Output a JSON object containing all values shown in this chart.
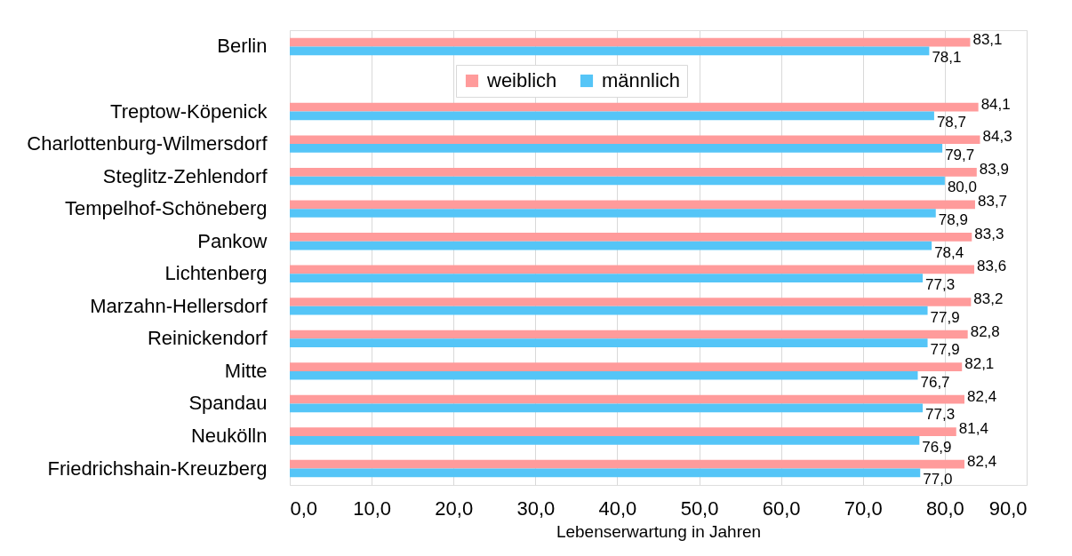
{
  "chart_data": {
    "type": "bar",
    "orientation": "horizontal",
    "xlabel": "Lebenserwartung in Jahren",
    "categories": [
      "Berlin",
      null,
      "Treptow-Köpenick",
      "Charlottenburg-Wilmersdorf",
      "Steglitz-Zehlendorf",
      "Tempelhof-Schöneberg",
      "Pankow",
      "Lichtenberg",
      "Marzahn-Hellersdorf",
      "Reinickendorf",
      "Mitte",
      "Spandau",
      "Neukölln",
      "Friedrichshain-Kreuzberg"
    ],
    "series": [
      {
        "name": "weiblich",
        "color": "#ff9b9b",
        "values": [
          83.1,
          null,
          84.1,
          84.3,
          83.9,
          83.7,
          83.3,
          83.6,
          83.2,
          82.8,
          82.1,
          82.4,
          81.4,
          82.4
        ],
        "value_labels": [
          "83,1",
          null,
          "84,1",
          "84,3",
          "83,9",
          "83,7",
          "83,3",
          "83,6",
          "83,2",
          "82,8",
          "82,1",
          "82,4",
          "81,4",
          "82,4"
        ]
      },
      {
        "name": "männlich",
        "color": "#55c5f7",
        "values": [
          78.1,
          null,
          78.7,
          79.7,
          80.0,
          78.9,
          78.4,
          77.3,
          77.9,
          77.9,
          76.7,
          77.3,
          76.9,
          77.0
        ],
        "value_labels": [
          "78,1",
          null,
          "78,7",
          "79,7",
          "80,0",
          "78,9",
          "78,4",
          "77,3",
          "77,9",
          "77,9",
          "76,7",
          "77,3",
          "76,9",
          "77,0"
        ]
      }
    ],
    "xlim": [
      0,
      90
    ],
    "xticks": [
      {
        "value": 0,
        "label": "0,0"
      },
      {
        "value": 10,
        "label": "10,0"
      },
      {
        "value": 20,
        "label": "20,0"
      },
      {
        "value": 30,
        "label": "30,0"
      },
      {
        "value": 40,
        "label": "40,0"
      },
      {
        "value": 50,
        "label": "50,0"
      },
      {
        "value": 60,
        "label": "60,0"
      },
      {
        "value": 70,
        "label": "70,0"
      },
      {
        "value": 80,
        "label": "80,0"
      },
      {
        "value": 90,
        "label": "90,0"
      }
    ],
    "grid": "x",
    "legend": "top"
  }
}
